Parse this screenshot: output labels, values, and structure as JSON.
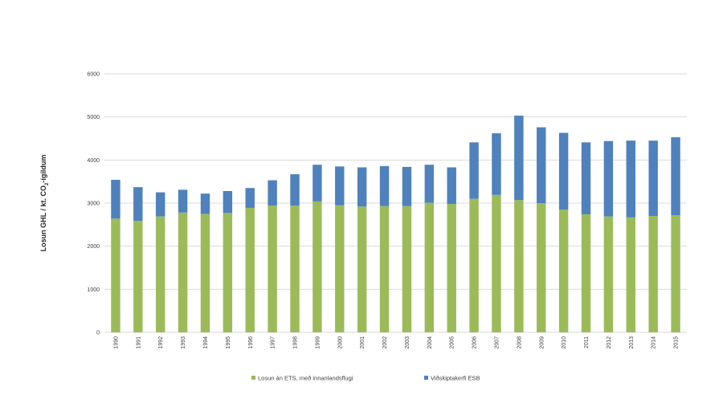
{
  "chart_data": {
    "type": "bar",
    "stacked": true,
    "title": "",
    "xlabel": "",
    "ylabel": "Losun GHL / kt. CO₂-ígildum",
    "ylim": [
      0,
      6000
    ],
    "yticks": [
      0,
      1000,
      2000,
      3000,
      4000,
      5000,
      6000
    ],
    "grid": true,
    "legend_position": "bottom",
    "categories": [
      "1990",
      "1991",
      "1992",
      "1993",
      "1994",
      "1995",
      "1996",
      "1997",
      "1998",
      "1999",
      "2000",
      "2001",
      "2002",
      "2003",
      "2004",
      "2005",
      "2006",
      "2007",
      "2008",
      "2009",
      "2010",
      "2011",
      "2012",
      "2013",
      "2014",
      "2015"
    ],
    "series": [
      {
        "name": "Losun án ETS, með innanlandsflugi",
        "color": "#9bbb59",
        "values": [
          2640,
          2590,
          2690,
          2780,
          2750,
          2770,
          2890,
          2940,
          2940,
          3040,
          2950,
          2920,
          2930,
          2930,
          3010,
          2980,
          3100,
          3190,
          3070,
          3000,
          2850,
          2740,
          2690,
          2670,
          2700,
          2720
        ]
      },
      {
        "name": "Viðskiptakerfi ESB",
        "color": "#4f81bd",
        "values": [
          900,
          780,
          560,
          530,
          470,
          510,
          460,
          590,
          730,
          850,
          900,
          910,
          930,
          910,
          880,
          850,
          1310,
          1430,
          1960,
          1760,
          1780,
          1670,
          1750,
          1780,
          1750,
          1810
        ]
      }
    ]
  }
}
